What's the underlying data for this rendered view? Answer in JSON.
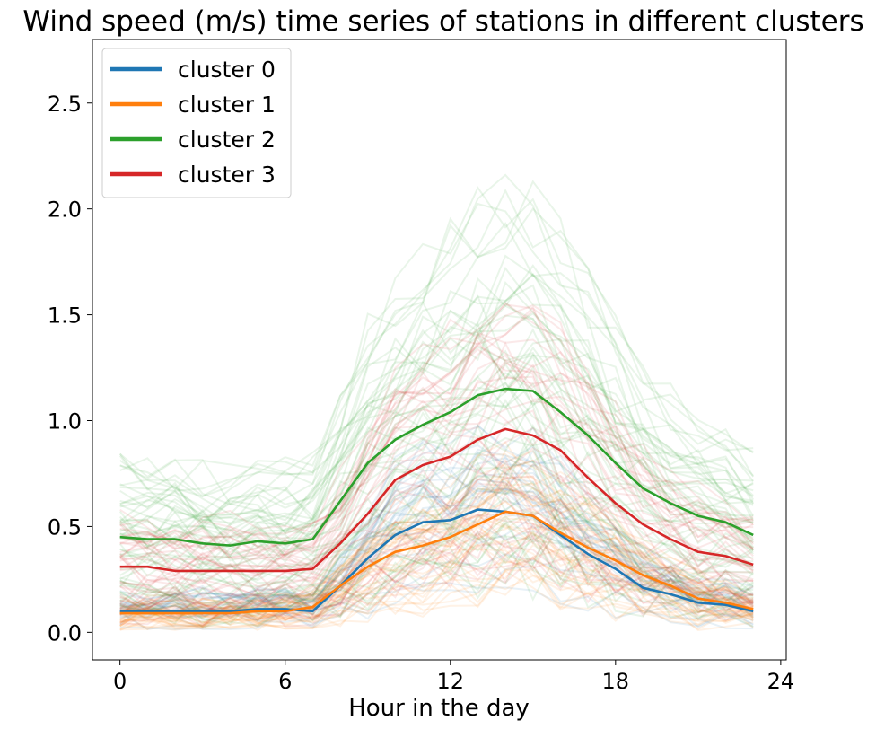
{
  "chart_data": {
    "type": "line",
    "title": "Wind speed (m/s) time series of stations in different clusters",
    "xlabel": "Hour in the day",
    "ylabel": "",
    "xlim": [
      -1,
      24.2
    ],
    "ylim": [
      -0.13,
      2.8
    ],
    "xticks": [
      0,
      6,
      12,
      18,
      24
    ],
    "yticks": [
      0.0,
      0.5,
      1.0,
      1.5,
      2.0,
      2.5
    ],
    "ytick_labels": [
      "0.0",
      "0.5",
      "1.0",
      "1.5",
      "2.0",
      "2.5"
    ],
    "grid": false,
    "legend_position": "top-left",
    "x": [
      0,
      1,
      2,
      3,
      4,
      5,
      6,
      7,
      8,
      9,
      10,
      11,
      12,
      13,
      14,
      15,
      16,
      17,
      18,
      19,
      20,
      21,
      22,
      23
    ],
    "series": [
      {
        "name": "cluster 0",
        "color": "#1f77b4",
        "values": [
          0.1,
          0.1,
          0.1,
          0.1,
          0.1,
          0.11,
          0.11,
          0.1,
          0.22,
          0.35,
          0.46,
          0.52,
          0.53,
          0.58,
          0.57,
          0.55,
          0.46,
          0.37,
          0.3,
          0.21,
          0.18,
          0.14,
          0.13,
          0.1
        ]
      },
      {
        "name": "cluster 1",
        "color": "#ff7f0e",
        "values": [
          0.09,
          0.09,
          0.09,
          0.09,
          0.09,
          0.1,
          0.1,
          0.12,
          0.22,
          0.31,
          0.38,
          0.41,
          0.45,
          0.51,
          0.57,
          0.55,
          0.47,
          0.4,
          0.34,
          0.27,
          0.22,
          0.16,
          0.14,
          0.11
        ]
      },
      {
        "name": "cluster 2",
        "color": "#2ca02c",
        "values": [
          0.45,
          0.44,
          0.44,
          0.42,
          0.41,
          0.43,
          0.42,
          0.44,
          0.62,
          0.8,
          0.91,
          0.98,
          1.04,
          1.12,
          1.15,
          1.14,
          1.04,
          0.93,
          0.8,
          0.68,
          0.61,
          0.55,
          0.52,
          0.46
        ]
      },
      {
        "name": "cluster 3",
        "color": "#d62728",
        "values": [
          0.31,
          0.31,
          0.29,
          0.29,
          0.29,
          0.29,
          0.29,
          0.3,
          0.42,
          0.56,
          0.72,
          0.79,
          0.83,
          0.91,
          0.96,
          0.93,
          0.86,
          0.73,
          0.61,
          0.51,
          0.44,
          0.38,
          0.36,
          0.32
        ]
      }
    ]
  }
}
